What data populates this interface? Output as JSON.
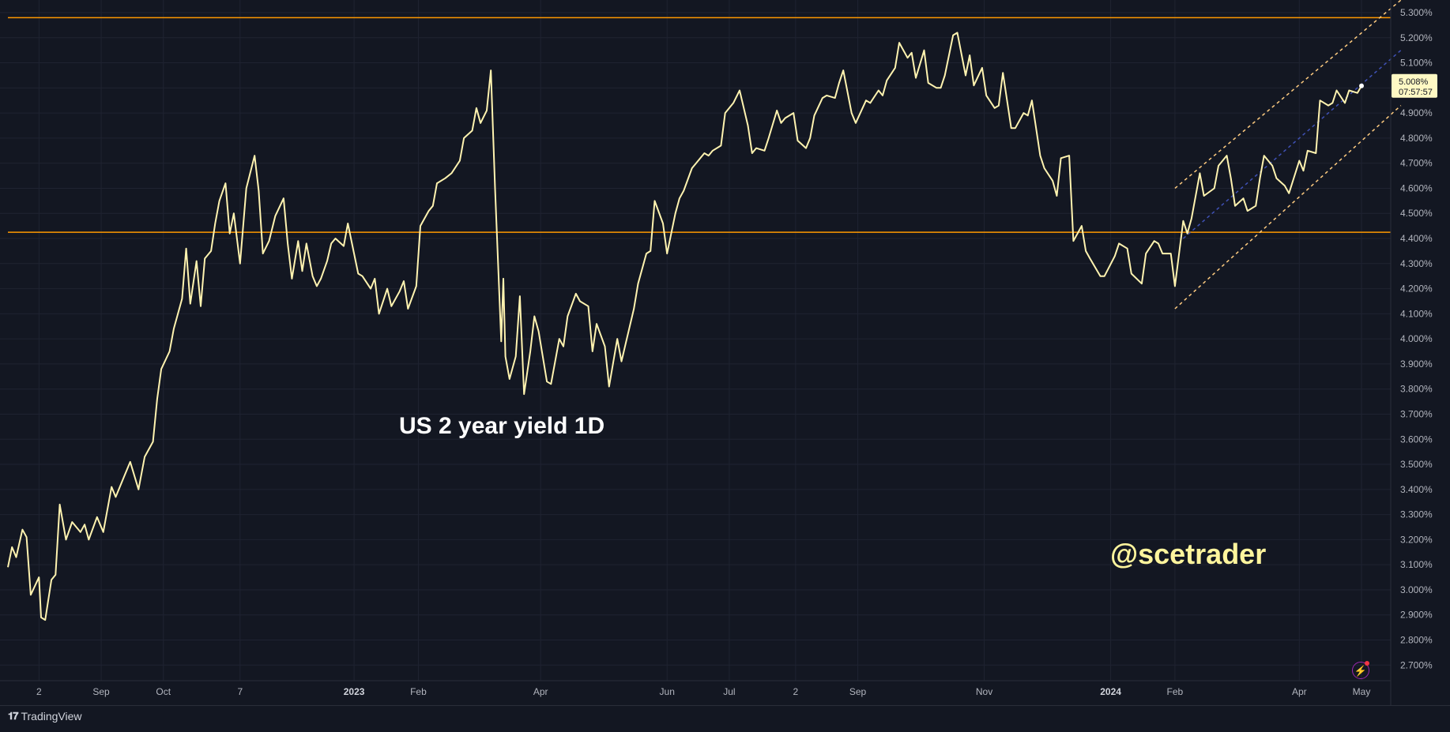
{
  "chart_data": {
    "type": "line",
    "title": "US 2 year yield 1D",
    "watermark": "@scetrader",
    "line_color": "#fff3b0",
    "background": "#131722",
    "y_unit": "%",
    "ylim": [
      2.65,
      5.35
    ],
    "y_ticks": [
      "5.300%",
      "5.200%",
      "5.100%",
      "5.000%",
      "4.900%",
      "4.800%",
      "4.700%",
      "4.600%",
      "4.500%",
      "4.400%",
      "4.300%",
      "4.200%",
      "4.100%",
      "4.000%",
      "3.900%",
      "3.800%",
      "3.700%",
      "3.600%",
      "3.500%",
      "3.400%",
      "3.300%",
      "3.200%",
      "3.100%",
      "3.000%",
      "2.900%",
      "2.800%",
      "2.700%"
    ],
    "x_ticks": [
      {
        "label": "2",
        "bold": false,
        "x": "2022-08-02"
      },
      {
        "label": "Sep",
        "bold": false,
        "x": "2022-09-01"
      },
      {
        "label": "Oct",
        "bold": false,
        "x": "2022-10-01"
      },
      {
        "label": "7",
        "bold": false,
        "x": "2022-11-07"
      },
      {
        "label": "2023",
        "bold": true,
        "x": "2023-01-01"
      },
      {
        "label": "Feb",
        "bold": false,
        "x": "2023-02-01"
      },
      {
        "label": "Apr",
        "bold": false,
        "x": "2023-04-01"
      },
      {
        "label": "Jun",
        "bold": false,
        "x": "2023-06-01"
      },
      {
        "label": "Jul",
        "bold": false,
        "x": "2023-07-01"
      },
      {
        "label": "2",
        "bold": false,
        "x": "2023-08-02"
      },
      {
        "label": "Sep",
        "bold": false,
        "x": "2023-09-01"
      },
      {
        "label": "Nov",
        "bold": false,
        "x": "2023-11-01"
      },
      {
        "label": "2024",
        "bold": true,
        "x": "2024-01-01"
      },
      {
        "label": "Feb",
        "bold": false,
        "x": "2024-02-01"
      },
      {
        "label": "Apr",
        "bold": false,
        "x": "2024-04-01"
      },
      {
        "label": "May",
        "bold": false,
        "x": "2024-05-01"
      }
    ],
    "horizontal_levels": [
      {
        "value": 5.28,
        "color": "#ff9800"
      },
      {
        "value": 4.425,
        "color": "#ff9800"
      }
    ],
    "channel": {
      "upper": [
        {
          "x": "2024-02-01",
          "y": 4.6
        },
        {
          "x": "2024-05-20",
          "y": 5.35
        }
      ],
      "middle": [
        {
          "x": "2024-02-05",
          "y": 4.4
        },
        {
          "x": "2024-05-20",
          "y": 5.15
        }
      ],
      "lower": [
        {
          "x": "2024-02-01",
          "y": 4.12
        },
        {
          "x": "2024-05-20",
          "y": 4.93
        }
      ],
      "outer_color": "#ffcc80",
      "middle_color": "#3f51b5"
    },
    "last_value": {
      "value": "5.008%",
      "countdown": "07:57:57",
      "y": 5.008
    },
    "series": [
      {
        "points": [
          [
            "2022-07-18",
            3.09
          ],
          [
            "2022-07-20",
            3.17
          ],
          [
            "2022-07-22",
            3.13
          ],
          [
            "2022-07-25",
            3.24
          ],
          [
            "2022-07-27",
            3.21
          ],
          [
            "2022-07-29",
            2.98
          ],
          [
            "2022-08-02",
            3.05
          ],
          [
            "2022-08-03",
            2.89
          ],
          [
            "2022-08-05",
            2.88
          ],
          [
            "2022-08-08",
            3.04
          ],
          [
            "2022-08-10",
            3.06
          ],
          [
            "2022-08-12",
            3.34
          ],
          [
            "2022-08-15",
            3.2
          ],
          [
            "2022-08-18",
            3.27
          ],
          [
            "2022-08-22",
            3.23
          ],
          [
            "2022-08-24",
            3.26
          ],
          [
            "2022-08-26",
            3.2
          ],
          [
            "2022-08-30",
            3.29
          ],
          [
            "2022-09-02",
            3.23
          ],
          [
            "2022-09-06",
            3.41
          ],
          [
            "2022-09-08",
            3.37
          ],
          [
            "2022-09-12",
            3.45
          ],
          [
            "2022-09-15",
            3.51
          ],
          [
            "2022-09-19",
            3.4
          ],
          [
            "2022-09-22",
            3.53
          ],
          [
            "2022-09-26",
            3.59
          ],
          [
            "2022-09-28",
            3.76
          ],
          [
            "2022-09-30",
            3.88
          ],
          [
            "2022-10-04",
            3.95
          ],
          [
            "2022-10-06",
            4.04
          ],
          [
            "2022-10-10",
            4.16
          ],
          [
            "2022-10-12",
            4.36
          ],
          [
            "2022-10-14",
            4.14
          ],
          [
            "2022-10-17",
            4.31
          ],
          [
            "2022-10-19",
            4.13
          ],
          [
            "2022-10-21",
            4.32
          ],
          [
            "2022-10-24",
            4.35
          ],
          [
            "2022-10-26",
            4.46
          ],
          [
            "2022-10-28",
            4.55
          ],
          [
            "2022-10-31",
            4.62
          ],
          [
            "2022-11-02",
            4.42
          ],
          [
            "2022-11-04",
            4.5
          ],
          [
            "2022-11-07",
            4.3
          ],
          [
            "2022-11-10",
            4.6
          ],
          [
            "2022-11-14",
            4.73
          ],
          [
            "2022-11-16",
            4.59
          ],
          [
            "2022-11-18",
            4.34
          ],
          [
            "2022-11-21",
            4.39
          ],
          [
            "2022-11-24",
            4.49
          ],
          [
            "2022-11-28",
            4.56
          ],
          [
            "2022-11-30",
            4.38
          ],
          [
            "2022-12-02",
            4.24
          ],
          [
            "2022-12-05",
            4.39
          ],
          [
            "2022-12-07",
            4.27
          ],
          [
            "2022-12-09",
            4.38
          ],
          [
            "2022-12-12",
            4.25
          ],
          [
            "2022-12-14",
            4.21
          ],
          [
            "2022-12-16",
            4.24
          ],
          [
            "2022-12-19",
            4.31
          ],
          [
            "2022-12-21",
            4.38
          ],
          [
            "2022-12-23",
            4.4
          ],
          [
            "2022-12-27",
            4.37
          ],
          [
            "2022-12-29",
            4.46
          ],
          [
            "2023-01-03",
            4.26
          ],
          [
            "2023-01-05",
            4.25
          ],
          [
            "2023-01-09",
            4.2
          ],
          [
            "2023-01-11",
            4.24
          ],
          [
            "2023-01-13",
            4.1
          ],
          [
            "2023-01-17",
            4.2
          ],
          [
            "2023-01-19",
            4.13
          ],
          [
            "2023-01-23",
            4.19
          ],
          [
            "2023-01-25",
            4.23
          ],
          [
            "2023-01-27",
            4.12
          ],
          [
            "2023-01-31",
            4.21
          ],
          [
            "2023-02-02",
            4.45
          ],
          [
            "2023-02-06",
            4.51
          ],
          [
            "2023-02-08",
            4.53
          ],
          [
            "2023-02-10",
            4.62
          ],
          [
            "2023-02-14",
            4.64
          ],
          [
            "2023-02-17",
            4.66
          ],
          [
            "2023-02-21",
            4.71
          ],
          [
            "2023-02-23",
            4.8
          ],
          [
            "2023-02-27",
            4.83
          ],
          [
            "2023-03-01",
            4.92
          ],
          [
            "2023-03-03",
            4.86
          ],
          [
            "2023-03-06",
            4.91
          ],
          [
            "2023-03-08",
            5.07
          ],
          [
            "2023-03-10",
            4.6
          ],
          [
            "2023-03-13",
            3.99
          ],
          [
            "2023-03-14",
            4.24
          ],
          [
            "2023-03-15",
            3.93
          ],
          [
            "2023-03-17",
            3.84
          ],
          [
            "2023-03-20",
            3.93
          ],
          [
            "2023-03-22",
            4.17
          ],
          [
            "2023-03-24",
            3.78
          ],
          [
            "2023-03-27",
            3.95
          ],
          [
            "2023-03-29",
            4.09
          ],
          [
            "2023-03-31",
            4.03
          ],
          [
            "2023-04-04",
            3.83
          ],
          [
            "2023-04-06",
            3.82
          ],
          [
            "2023-04-10",
            4.0
          ],
          [
            "2023-04-12",
            3.97
          ],
          [
            "2023-04-14",
            4.09
          ],
          [
            "2023-04-18",
            4.18
          ],
          [
            "2023-04-20",
            4.15
          ],
          [
            "2023-04-24",
            4.13
          ],
          [
            "2023-04-26",
            3.95
          ],
          [
            "2023-04-28",
            4.06
          ],
          [
            "2023-05-02",
            3.97
          ],
          [
            "2023-05-04",
            3.81
          ],
          [
            "2023-05-08",
            4.0
          ],
          [
            "2023-05-10",
            3.91
          ],
          [
            "2023-05-12",
            3.98
          ],
          [
            "2023-05-16",
            4.12
          ],
          [
            "2023-05-18",
            4.22
          ],
          [
            "2023-05-22",
            4.34
          ],
          [
            "2023-05-24",
            4.35
          ],
          [
            "2023-05-26",
            4.55
          ],
          [
            "2023-05-30",
            4.46
          ],
          [
            "2023-06-01",
            4.34
          ],
          [
            "2023-06-05",
            4.5
          ],
          [
            "2023-06-07",
            4.56
          ],
          [
            "2023-06-09",
            4.59
          ],
          [
            "2023-06-13",
            4.68
          ],
          [
            "2023-06-15",
            4.7
          ],
          [
            "2023-06-19",
            4.74
          ],
          [
            "2023-06-21",
            4.73
          ],
          [
            "2023-06-23",
            4.75
          ],
          [
            "2023-06-27",
            4.77
          ],
          [
            "2023-06-29",
            4.9
          ],
          [
            "2023-07-03",
            4.94
          ],
          [
            "2023-07-06",
            4.99
          ],
          [
            "2023-07-10",
            4.85
          ],
          [
            "2023-07-12",
            4.74
          ],
          [
            "2023-07-14",
            4.76
          ],
          [
            "2023-07-18",
            4.75
          ],
          [
            "2023-07-20",
            4.8
          ],
          [
            "2023-07-24",
            4.91
          ],
          [
            "2023-07-26",
            4.86
          ],
          [
            "2023-07-28",
            4.88
          ],
          [
            "2023-08-01",
            4.9
          ],
          [
            "2023-08-03",
            4.79
          ],
          [
            "2023-08-07",
            4.76
          ],
          [
            "2023-08-09",
            4.8
          ],
          [
            "2023-08-11",
            4.89
          ],
          [
            "2023-08-15",
            4.96
          ],
          [
            "2023-08-17",
            4.97
          ],
          [
            "2023-08-21",
            4.96
          ],
          [
            "2023-08-23",
            5.02
          ],
          [
            "2023-08-25",
            5.07
          ],
          [
            "2023-08-29",
            4.9
          ],
          [
            "2023-08-31",
            4.86
          ],
          [
            "2023-09-05",
            4.95
          ],
          [
            "2023-09-07",
            4.94
          ],
          [
            "2023-09-11",
            4.99
          ],
          [
            "2023-09-13",
            4.97
          ],
          [
            "2023-09-15",
            5.03
          ],
          [
            "2023-09-19",
            5.08
          ],
          [
            "2023-09-21",
            5.18
          ],
          [
            "2023-09-25",
            5.12
          ],
          [
            "2023-09-27",
            5.14
          ],
          [
            "2023-09-29",
            5.04
          ],
          [
            "2023-10-03",
            5.15
          ],
          [
            "2023-10-05",
            5.02
          ],
          [
            "2023-10-09",
            5.0
          ],
          [
            "2023-10-11",
            5.0
          ],
          [
            "2023-10-13",
            5.05
          ],
          [
            "2023-10-17",
            5.21
          ],
          [
            "2023-10-19",
            5.22
          ],
          [
            "2023-10-23",
            5.05
          ],
          [
            "2023-10-25",
            5.13
          ],
          [
            "2023-10-27",
            5.01
          ],
          [
            "2023-10-31",
            5.08
          ],
          [
            "2023-11-02",
            4.97
          ],
          [
            "2023-11-06",
            4.92
          ],
          [
            "2023-11-08",
            4.93
          ],
          [
            "2023-11-10",
            5.06
          ],
          [
            "2023-11-14",
            4.84
          ],
          [
            "2023-11-16",
            4.84
          ],
          [
            "2023-11-20",
            4.9
          ],
          [
            "2023-11-22",
            4.89
          ],
          [
            "2023-11-24",
            4.95
          ],
          [
            "2023-11-28",
            4.73
          ],
          [
            "2023-11-30",
            4.68
          ],
          [
            "2023-12-04",
            4.63
          ],
          [
            "2023-12-06",
            4.57
          ],
          [
            "2023-12-08",
            4.72
          ],
          [
            "2023-12-12",
            4.73
          ],
          [
            "2023-12-14",
            4.39
          ],
          [
            "2023-12-18",
            4.45
          ],
          [
            "2023-12-20",
            4.35
          ],
          [
            "2023-12-22",
            4.32
          ],
          [
            "2023-12-27",
            4.25
          ],
          [
            "2023-12-29",
            4.25
          ],
          [
            "2024-01-03",
            4.33
          ],
          [
            "2024-01-05",
            4.38
          ],
          [
            "2024-01-09",
            4.36
          ],
          [
            "2024-01-11",
            4.26
          ],
          [
            "2024-01-16",
            4.22
          ],
          [
            "2024-01-18",
            4.34
          ],
          [
            "2024-01-22",
            4.39
          ],
          [
            "2024-01-24",
            4.38
          ],
          [
            "2024-01-26",
            4.34
          ],
          [
            "2024-01-30",
            4.34
          ],
          [
            "2024-02-01",
            4.21
          ],
          [
            "2024-02-05",
            4.47
          ],
          [
            "2024-02-07",
            4.42
          ],
          [
            "2024-02-09",
            4.48
          ],
          [
            "2024-02-13",
            4.66
          ],
          [
            "2024-02-15",
            4.57
          ],
          [
            "2024-02-20",
            4.6
          ],
          [
            "2024-02-22",
            4.69
          ],
          [
            "2024-02-26",
            4.73
          ],
          [
            "2024-02-28",
            4.64
          ],
          [
            "2024-03-01",
            4.53
          ],
          [
            "2024-03-05",
            4.56
          ],
          [
            "2024-03-07",
            4.51
          ],
          [
            "2024-03-11",
            4.53
          ],
          [
            "2024-03-13",
            4.64
          ],
          [
            "2024-03-15",
            4.73
          ],
          [
            "2024-03-19",
            4.69
          ],
          [
            "2024-03-21",
            4.64
          ],
          [
            "2024-03-25",
            4.61
          ],
          [
            "2024-03-27",
            4.58
          ],
          [
            "2024-04-01",
            4.71
          ],
          [
            "2024-04-03",
            4.67
          ],
          [
            "2024-04-05",
            4.75
          ],
          [
            "2024-04-09",
            4.74
          ],
          [
            "2024-04-11",
            4.95
          ],
          [
            "2024-04-15",
            4.93
          ],
          [
            "2024-04-17",
            4.94
          ],
          [
            "2024-04-19",
            4.99
          ],
          [
            "2024-04-23",
            4.94
          ],
          [
            "2024-04-25",
            4.99
          ],
          [
            "2024-04-29",
            4.98
          ],
          [
            "2024-05-01",
            5.008
          ]
        ]
      }
    ]
  },
  "footer": {
    "brand": "TradingView"
  }
}
